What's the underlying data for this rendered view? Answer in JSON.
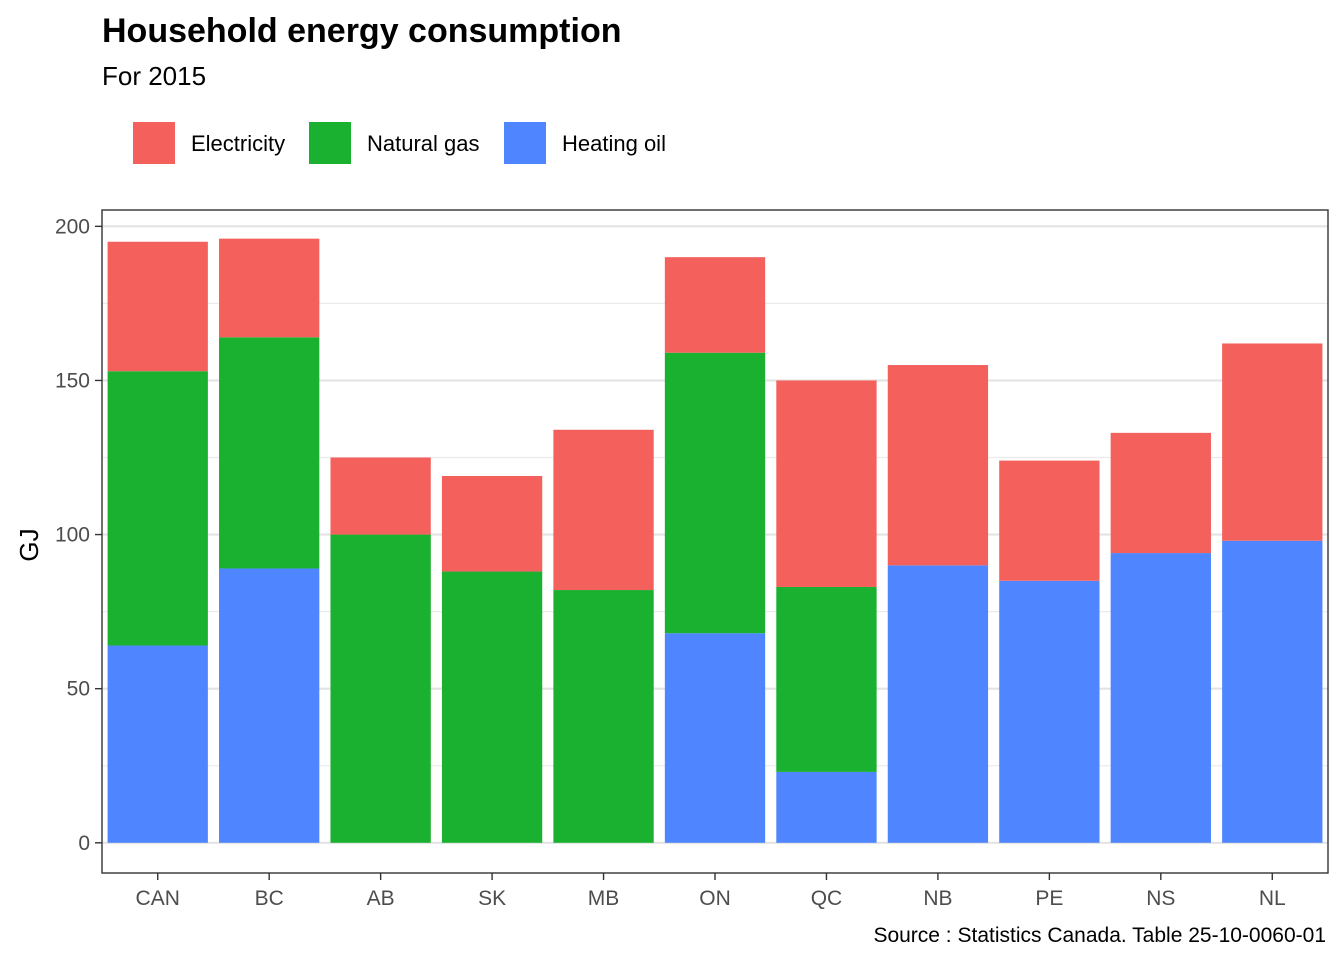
{
  "chart_data": {
    "type": "bar",
    "stacked": true,
    "title": "Household energy consumption",
    "subtitle": "For 2015",
    "xlabel": "",
    "ylabel": "GJ",
    "caption": "Source : Statistics Canada. Table 25-10-0060-01",
    "categories": [
      "CAN",
      "BC",
      "AB",
      "SK",
      "MB",
      "ON",
      "QC",
      "NB",
      "PE",
      "NS",
      "NL"
    ],
    "series": [
      {
        "name": "Heating oil",
        "color": "#4F86FF",
        "values": [
          64,
          89,
          0,
          0,
          0,
          68,
          23,
          90,
          85,
          94,
          98
        ]
      },
      {
        "name": "Natural gas",
        "color": "#19B12F",
        "values": [
          89,
          75,
          100,
          88,
          82,
          91,
          60,
          0,
          0,
          0,
          0
        ]
      },
      {
        "name": "Electricity",
        "color": "#F4615D",
        "values": [
          42,
          32,
          25,
          31,
          52,
          31,
          67,
          65,
          39,
          39,
          64
        ]
      }
    ],
    "legend_order": [
      "Electricity",
      "Natural gas",
      "Heating oil"
    ],
    "legend_position": "top-left",
    "ylim": [
      -9.8,
      205.3
    ],
    "yticks": [
      0,
      50,
      100,
      150,
      200
    ],
    "grid": true
  }
}
